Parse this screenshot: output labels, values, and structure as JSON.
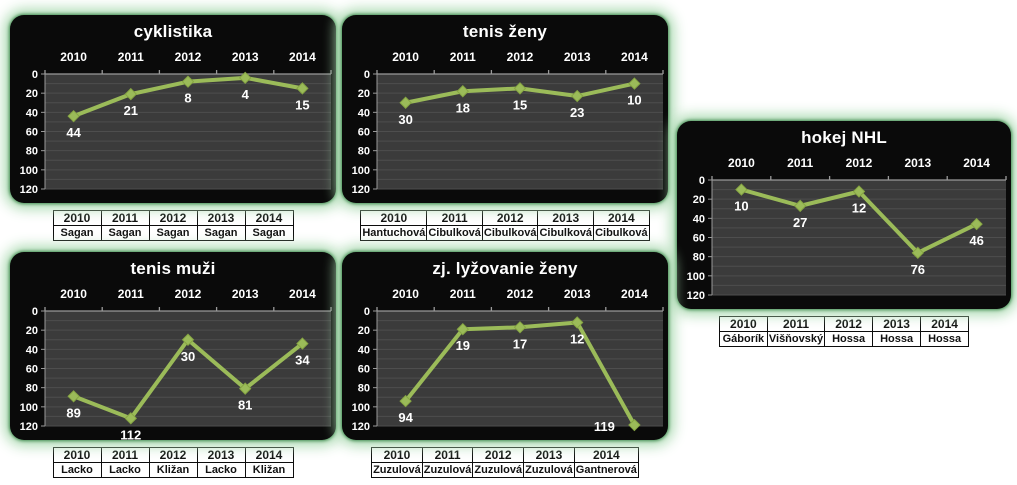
{
  "page": {
    "background": "#ffffff"
  },
  "style": {
    "panel_bg": "#0a0a0a",
    "plot_bg": "#3b3b3b",
    "gridline": "#4e4e4e",
    "axis_line": "#9a9a9a",
    "line_color": "#9bbb59",
    "marker_edge": "#86a543",
    "label_color": "#ffffff",
    "glow_color": "#a8d8ae"
  },
  "chart_data": [
    {
      "type": "line",
      "title": "cyklistika",
      "categories": [
        "2010",
        "2011",
        "2012",
        "2013",
        "2014"
      ],
      "values": [
        44,
        21,
        8,
        4,
        15
      ],
      "ylim": [
        0,
        120
      ],
      "y_ticks": [
        0,
        20,
        40,
        60,
        80,
        100,
        120
      ],
      "y_axis_inverted": true,
      "grid": true,
      "legend": false,
      "table": {
        "years": [
          "2010",
          "2011",
          "2012",
          "2013",
          "2014"
        ],
        "names": [
          "Sagan",
          "Sagan",
          "Sagan",
          "Sagan",
          "Sagan"
        ]
      }
    },
    {
      "type": "line",
      "title": "tenis ženy",
      "categories": [
        "2010",
        "2011",
        "2012",
        "2013",
        "2014"
      ],
      "values": [
        30,
        18,
        15,
        23,
        10
      ],
      "ylim": [
        0,
        120
      ],
      "y_ticks": [
        0,
        20,
        40,
        60,
        80,
        100,
        120
      ],
      "y_axis_inverted": true,
      "grid": true,
      "legend": false,
      "table": {
        "years": [
          "2010",
          "2011",
          "2012",
          "2013",
          "2014"
        ],
        "names": [
          "Hantuchová",
          "Cibulková",
          "Cibulková",
          "Cibulková",
          "Cibulková"
        ]
      }
    },
    {
      "type": "line",
      "title": "hokej NHL",
      "categories": [
        "2010",
        "2011",
        "2012",
        "2013",
        "2014"
      ],
      "values": [
        10,
        27,
        12,
        76,
        46
      ],
      "ylim": [
        0,
        120
      ],
      "y_ticks": [
        0,
        20,
        40,
        60,
        80,
        100,
        120
      ],
      "y_axis_inverted": true,
      "grid": true,
      "legend": false,
      "table": {
        "years": [
          "2010",
          "2011",
          "2012",
          "2013",
          "2014"
        ],
        "names": [
          "Gáborík",
          "Višňovský",
          "Hossa",
          "Hossa",
          "Hossa"
        ]
      }
    },
    {
      "type": "line",
      "title": "tenis muži",
      "categories": [
        "2010",
        "2011",
        "2012",
        "2013",
        "2014"
      ],
      "values": [
        89,
        112,
        30,
        81,
        34
      ],
      "ylim": [
        0,
        120
      ],
      "y_ticks": [
        0,
        20,
        40,
        60,
        80,
        100,
        120
      ],
      "y_axis_inverted": true,
      "grid": true,
      "legend": false,
      "table": {
        "years": [
          "2010",
          "2011",
          "2012",
          "2013",
          "2014"
        ],
        "names": [
          "Lacko",
          "Lacko",
          "Kližan",
          "Lacko",
          "Kližan"
        ]
      }
    },
    {
      "type": "line",
      "title": "zj. lyžovanie ženy",
      "categories": [
        "2010",
        "2011",
        "2012",
        "2013",
        "2014"
      ],
      "values": [
        94,
        19,
        17,
        12,
        119
      ],
      "ylim": [
        0,
        120
      ],
      "y_ticks": [
        0,
        20,
        40,
        60,
        80,
        100,
        120
      ],
      "y_axis_inverted": true,
      "grid": true,
      "legend": false,
      "table": {
        "years": [
          "2010",
          "2011",
          "2012",
          "2013",
          "2014"
        ],
        "names": [
          "Zuzulová",
          "Zuzulová",
          "Zuzulová",
          "Zuzulová",
          "Gantnerová"
        ]
      }
    }
  ]
}
